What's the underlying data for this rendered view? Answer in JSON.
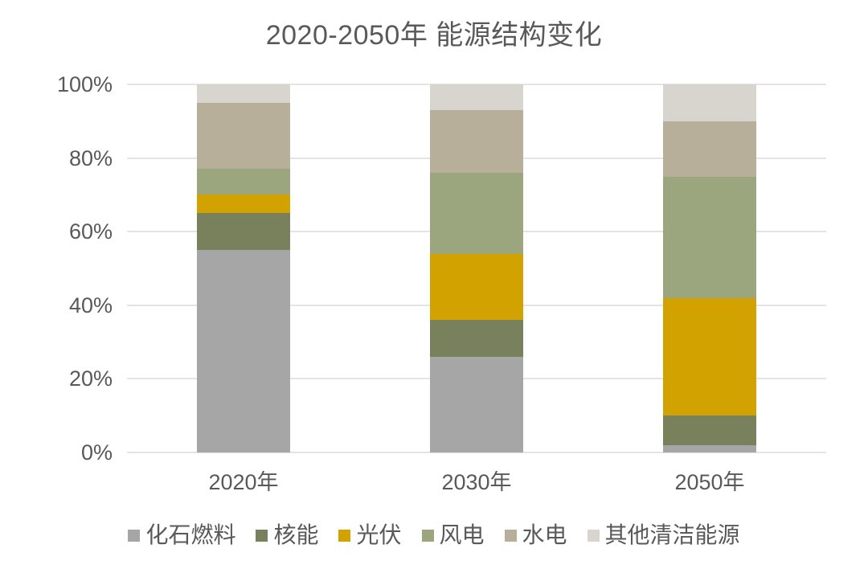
{
  "chart_data": {
    "type": "bar",
    "stacked": true,
    "percent_stacked": true,
    "title": "2020-2050年 能源结构变化",
    "categories": [
      "2020年",
      "2030年",
      "2050年"
    ],
    "series": [
      {
        "name": "化石燃料",
        "color": "#a6a6a6",
        "values": [
          55,
          26,
          2
        ]
      },
      {
        "name": "核能",
        "color": "#78815c",
        "values": [
          10,
          10,
          8
        ]
      },
      {
        "name": "光伏",
        "color": "#d2a300",
        "values": [
          5,
          18,
          32
        ]
      },
      {
        "name": "风电",
        "color": "#9ba67e",
        "values": [
          7,
          22,
          33
        ]
      },
      {
        "name": "水电",
        "color": "#b7af99",
        "values": [
          18,
          17,
          15
        ]
      },
      {
        "name": "其他清洁能源",
        "color": "#d8d5cf",
        "values": [
          5,
          7,
          10
        ]
      }
    ],
    "xlabel": "",
    "ylabel": "",
    "unit": "%",
    "ylim": [
      0,
      100
    ],
    "yticks": [
      0,
      20,
      40,
      60,
      80,
      100
    ],
    "ytick_labels": [
      "0%",
      "20%",
      "40%",
      "60%",
      "80%",
      "100%"
    ],
    "grid": true,
    "legend_position": "bottom"
  },
  "colors": {
    "text": "#595959",
    "gridline": "#e4e4e4",
    "background": "#ffffff"
  }
}
